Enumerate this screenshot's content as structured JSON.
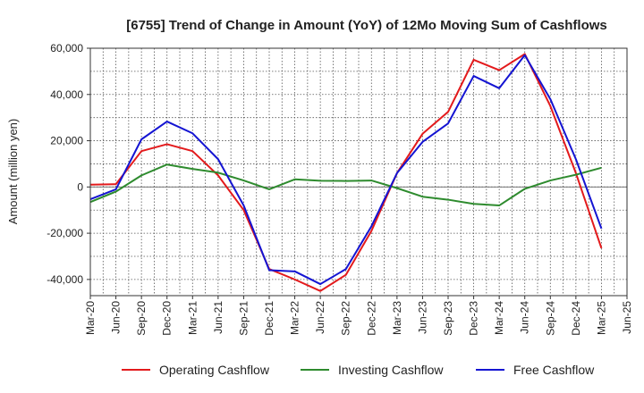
{
  "chart_data": {
    "type": "line",
    "title": "[6755]  Trend of Change in Amount (YoY) of 12Mo Moving Sum of Cashflows",
    "xlabel": "",
    "ylabel": "Amount (million yen)",
    "ylim": [
      -47000,
      60000
    ],
    "yticks": [
      60000,
      40000,
      20000,
      0,
      -20000,
      -40000
    ],
    "ytick_labels": [
      "60,000",
      "40,000",
      "20,000",
      "0",
      "-20,000",
      "-40,000"
    ],
    "categories": [
      "Mar-20",
      "Jun-20",
      "Sep-20",
      "Dec-20",
      "Mar-21",
      "Jun-21",
      "Sep-21",
      "Dec-21",
      "Mar-22",
      "Jun-22",
      "Sep-22",
      "Dec-22",
      "Mar-23",
      "Jun-23",
      "Sep-23",
      "Dec-23",
      "Mar-24",
      "Jun-24",
      "Sep-24",
      "Dec-24",
      "Mar-25",
      "Jun-25"
    ],
    "grid": true,
    "legend_position": "bottom",
    "series": [
      {
        "name": "Operating Cashflow",
        "color": "#e31a1c",
        "values": [
          1000,
          1200,
          15500,
          18500,
          15500,
          5000,
          -10000,
          -35500,
          -40000,
          -45000,
          -38000,
          -19000,
          6000,
          23000,
          32500,
          55000,
          50500,
          57500,
          35000,
          6000,
          -26500,
          null
        ]
      },
      {
        "name": "Investing Cashflow",
        "color": "#2e8b2e",
        "values": [
          -6500,
          -2000,
          5000,
          9700,
          7800,
          6200,
          2800,
          -1000,
          3300,
          2700,
          2600,
          2800,
          -500,
          -4200,
          -5500,
          -7300,
          -8000,
          -800,
          2800,
          5300,
          8300,
          null
        ]
      },
      {
        "name": "Free Cashflow",
        "color": "#1414d2",
        "values": [
          -5300,
          -1000,
          20600,
          28300,
          23200,
          12000,
          -8000,
          -36000,
          -36500,
          -42000,
          -35500,
          -17000,
          6000,
          19500,
          27500,
          48000,
          42700,
          57000,
          38000,
          12000,
          -18000,
          null
        ]
      }
    ]
  }
}
